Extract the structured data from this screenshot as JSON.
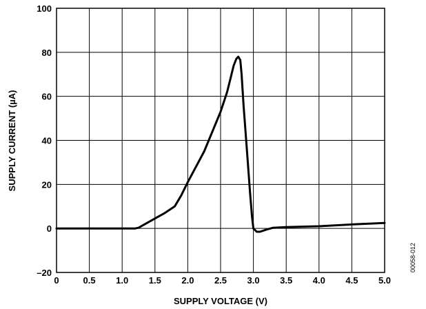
{
  "chart_data": {
    "type": "line",
    "title": "",
    "xlabel": "SUPPLY VOLTAGE (V)",
    "ylabel": "SUPPLY CURRENT (µA)",
    "xlim": [
      0,
      5.0
    ],
    "ylim": [
      -20,
      100
    ],
    "xticks": [
      0,
      0.5,
      1.0,
      1.5,
      2.0,
      2.5,
      3.0,
      3.5,
      4.0,
      4.5,
      5.0
    ],
    "xtick_labels": [
      "0",
      "0.5",
      "1.0",
      "1.5",
      "2.0",
      "2.5",
      "3.0",
      "3.5",
      "4.0",
      "4.5",
      "5.0"
    ],
    "yticks": [
      -20,
      0,
      20,
      40,
      60,
      80,
      100
    ],
    "ytick_labels": [
      "–20",
      "0",
      "20",
      "40",
      "60",
      "80",
      "100"
    ],
    "grid": true,
    "color": "#000000",
    "series": [
      {
        "x": [
          0.0,
          0.5,
          1.0,
          1.2,
          1.25,
          1.35,
          1.5,
          1.65,
          1.8,
          1.9,
          2.0,
          2.25,
          2.5,
          2.6,
          2.65,
          2.7,
          2.74,
          2.77,
          2.8,
          2.82,
          2.85,
          2.9,
          2.95,
          2.98,
          3.0,
          3.05,
          3.1,
          3.15,
          3.2,
          3.3,
          3.5,
          4.0,
          4.5,
          5.0
        ],
        "y": [
          0.0,
          0.0,
          0.0,
          0.0,
          0.3,
          2.0,
          4.5,
          7.0,
          10.0,
          15.0,
          21.0,
          35.0,
          53.0,
          62.0,
          68.0,
          74.0,
          77.0,
          78.0,
          76.5,
          70.0,
          56.0,
          36.0,
          16.0,
          5.0,
          0.0,
          -1.5,
          -1.5,
          -1.0,
          -0.5,
          0.3,
          0.6,
          1.0,
          1.8,
          2.5
        ]
      }
    ]
  },
  "figure_code": "00058-012"
}
